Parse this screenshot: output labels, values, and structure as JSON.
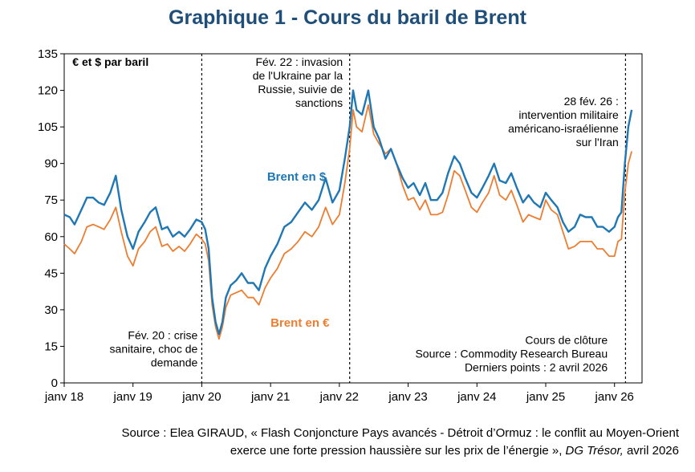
{
  "title": "Graphique 1 - Cours du baril de Brent",
  "source_line1": "Source : Elea GIRAUD, « Flash Conjoncture Pays avancés - Détroit d’Ormuz : le conflit au Moyen-Orient",
  "source_line2a": "exerce une forte pression haussière sur les prix de l’énergie », ",
  "source_line2b": "DG Trésor,",
  "source_line2c": " avril 2026",
  "chart_data": {
    "type": "line",
    "ylabel": "€ et $ par baril",
    "ylim": [
      0,
      135
    ],
    "yticks": [
      0,
      15,
      30,
      45,
      60,
      75,
      90,
      105,
      120,
      135
    ],
    "xlim": [
      2018.0,
      2026.4
    ],
    "xticks": [
      {
        "label": "janv 18",
        "value": 2018.0
      },
      {
        "label": "janv 19",
        "value": 2019.0
      },
      {
        "label": "janv 20",
        "value": 2020.0
      },
      {
        "label": "janv 21",
        "value": 2021.0
      },
      {
        "label": "janv 22",
        "value": 2022.0
      },
      {
        "label": "janv 23",
        "value": 2023.0
      },
      {
        "label": "janv 24",
        "value": 2024.0
      },
      {
        "label": "janv 25",
        "value": 2025.0
      },
      {
        "label": "janv 26",
        "value": 2026.0
      }
    ],
    "grid": false,
    "series": [
      {
        "name": "Brent en $",
        "color": "#1F77B4",
        "x": [
          2018.0,
          2018.08,
          2018.15,
          2018.25,
          2018.33,
          2018.42,
          2018.5,
          2018.58,
          2018.67,
          2018.75,
          2018.83,
          2018.92,
          2019.0,
          2019.08,
          2019.17,
          2019.25,
          2019.33,
          2019.42,
          2019.5,
          2019.58,
          2019.67,
          2019.75,
          2019.83,
          2019.92,
          2020.0,
          2020.05,
          2020.1,
          2020.15,
          2020.2,
          2020.25,
          2020.3,
          2020.35,
          2020.42,
          2020.5,
          2020.58,
          2020.67,
          2020.75,
          2020.83,
          2020.92,
          2021.0,
          2021.1,
          2021.2,
          2021.3,
          2021.4,
          2021.5,
          2021.6,
          2021.7,
          2021.8,
          2021.9,
          2022.0,
          2022.08,
          2022.15,
          2022.2,
          2022.25,
          2022.33,
          2022.42,
          2022.5,
          2022.58,
          2022.67,
          2022.75,
          2022.83,
          2022.92,
          2023.0,
          2023.08,
          2023.17,
          2023.25,
          2023.33,
          2023.42,
          2023.5,
          2023.58,
          2023.67,
          2023.75,
          2023.83,
          2023.92,
          2024.0,
          2024.08,
          2024.17,
          2024.25,
          2024.33,
          2024.42,
          2024.5,
          2024.58,
          2024.67,
          2024.75,
          2024.83,
          2024.92,
          2025.0,
          2025.08,
          2025.17,
          2025.25,
          2025.33,
          2025.42,
          2025.5,
          2025.58,
          2025.67,
          2025.75,
          2025.83,
          2025.92,
          2026.0,
          2026.05,
          2026.1,
          2026.15,
          2026.2,
          2026.25
        ],
        "values": [
          69,
          68,
          65,
          71,
          76,
          76,
          74,
          73,
          78,
          85,
          71,
          60,
          55,
          62,
          66,
          70,
          72,
          63,
          64,
          60,
          62,
          60,
          63,
          67,
          66,
          63,
          55,
          35,
          25,
          20,
          25,
          35,
          40,
          42,
          45,
          41,
          41,
          38,
          47,
          52,
          57,
          64,
          66,
          70,
          74,
          71,
          75,
          84,
          74,
          79,
          92,
          105,
          120,
          112,
          110,
          120,
          105,
          100,
          92,
          96,
          90,
          84,
          80,
          82,
          77,
          82,
          75,
          75,
          78,
          86,
          93,
          90,
          84,
          78,
          76,
          80,
          85,
          90,
          83,
          82,
          86,
          80,
          74,
          77,
          74,
          72,
          78,
          75,
          72,
          66,
          62,
          64,
          69,
          68,
          68,
          64,
          64,
          62,
          64,
          68,
          70,
          90,
          105,
          112
        ],
        "label": {
          "text": "Brent en $",
          "x": 2020.95,
          "y": 83
        }
      },
      {
        "name": "Brent en €",
        "color": "#ED7D31",
        "x": [
          2018.0,
          2018.08,
          2018.15,
          2018.25,
          2018.33,
          2018.42,
          2018.5,
          2018.58,
          2018.67,
          2018.75,
          2018.83,
          2018.92,
          2019.0,
          2019.08,
          2019.17,
          2019.25,
          2019.33,
          2019.42,
          2019.5,
          2019.58,
          2019.67,
          2019.75,
          2019.83,
          2019.92,
          2020.0,
          2020.05,
          2020.1,
          2020.15,
          2020.2,
          2020.25,
          2020.3,
          2020.35,
          2020.42,
          2020.5,
          2020.58,
          2020.67,
          2020.75,
          2020.83,
          2020.92,
          2021.0,
          2021.1,
          2021.2,
          2021.3,
          2021.4,
          2021.5,
          2021.6,
          2021.7,
          2021.8,
          2021.9,
          2022.0,
          2022.08,
          2022.15,
          2022.2,
          2022.25,
          2022.33,
          2022.42,
          2022.5,
          2022.58,
          2022.67,
          2022.75,
          2022.83,
          2022.92,
          2023.0,
          2023.08,
          2023.17,
          2023.25,
          2023.33,
          2023.42,
          2023.5,
          2023.58,
          2023.67,
          2023.75,
          2023.83,
          2023.92,
          2024.0,
          2024.08,
          2024.17,
          2024.25,
          2024.33,
          2024.42,
          2024.5,
          2024.58,
          2024.67,
          2024.75,
          2024.83,
          2024.92,
          2025.0,
          2025.08,
          2025.17,
          2025.25,
          2025.33,
          2025.42,
          2025.5,
          2025.58,
          2025.67,
          2025.75,
          2025.83,
          2025.92,
          2026.0,
          2026.05,
          2026.1,
          2026.15,
          2026.2,
          2026.25
        ],
        "values": [
          57,
          55,
          53,
          58,
          64,
          65,
          64,
          63,
          67,
          72,
          62,
          52,
          48,
          55,
          58,
          62,
          64,
          56,
          57,
          54,
          56,
          54,
          57,
          61,
          59,
          57,
          50,
          32,
          23,
          18,
          23,
          31,
          36,
          37,
          38,
          35,
          35,
          32,
          39,
          43,
          47,
          53,
          55,
          58,
          62,
          60,
          64,
          72,
          65,
          69,
          82,
          96,
          112,
          105,
          103,
          114,
          102,
          98,
          94,
          96,
          90,
          81,
          75,
          76,
          71,
          75,
          69,
          69,
          70,
          77,
          87,
          85,
          79,
          72,
          70,
          74,
          78,
          85,
          77,
          75,
          79,
          73,
          66,
          69,
          68,
          67,
          75,
          71,
          69,
          62,
          55,
          56,
          58,
          58,
          58,
          55,
          55,
          52,
          52,
          58,
          59,
          78,
          90,
          95
        ],
        "label": {
          "text": "Brent en €",
          "x": 2021.0,
          "y": 23
        }
      }
    ],
    "vlines": [
      2020.0,
      2022.15,
      2026.16
    ],
    "annotations": [
      {
        "lines": [
          "€ et $ par baril"
        ],
        "anchor": "start",
        "x": 2018.12,
        "y": 130,
        "bold": true
      },
      {
        "lines": [
          "Fév. 22 : invasion",
          "de l'Ukraine par la",
          "Russie, suivie de",
          "sanctions"
        ],
        "anchor": "end",
        "x": 2022.05,
        "y": 130
      },
      {
        "lines": [
          "28 fév. 26 :",
          "intervention militaire",
          "américano-israélienne",
          "sur l'Iran"
        ],
        "anchor": "end",
        "x": 2026.06,
        "y": 114
      },
      {
        "lines": [
          "Fév. 20 : crise",
          "sanitaire, choc de",
          "demande"
        ],
        "anchor": "end",
        "x": 1.0,
        "y": 18
      },
      {
        "lines": [
          "Cours de clôture",
          "Source : Commodity Research Bureau",
          "Derniers points : 2 avril 2026"
        ],
        "anchor": "end",
        "x": 2025.9,
        "y": 16
      }
    ]
  }
}
